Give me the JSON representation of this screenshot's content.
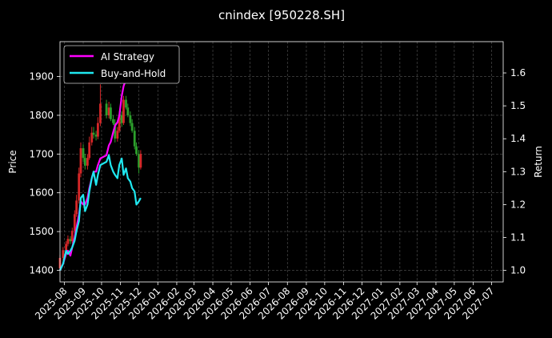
{
  "chart_data": {
    "type": "line",
    "title": "cnindex [950228.SH]",
    "xlabel": "",
    "ylabel": "Price",
    "y2label": "Return",
    "ylim": [
      1370,
      1990
    ],
    "y2lim": [
      0.965,
      1.695
    ],
    "y_ticks": [
      1400,
      1500,
      1600,
      1700,
      1800,
      1900
    ],
    "y2_ticks": [
      1.0,
      1.1,
      1.2,
      1.3,
      1.4,
      1.5,
      1.6
    ],
    "x_ticks": [
      "2025-08",
      "2025-09",
      "2025-10",
      "2025-11",
      "2025-12",
      "2026-01",
      "2026-02",
      "2026-03",
      "2026-04",
      "2026-05",
      "2026-06",
      "2026-07",
      "2026-08",
      "2026-09",
      "2026-10",
      "2026-11",
      "2026-12",
      "2027-01",
      "2027-02",
      "2027-03",
      "2027-04",
      "2027-05",
      "2027-06",
      "2027-07"
    ],
    "grid": true,
    "legend": "top-left",
    "background": "#000000",
    "candles": {
      "up_color": "#d62728",
      "down_color": "#2ca02c",
      "dates": [
        "2025-07-25",
        "2025-07-30",
        "2025-08-04",
        "2025-08-07",
        "2025-08-11",
        "2025-08-14",
        "2025-08-18",
        "2025-08-21",
        "2025-08-25",
        "2025-08-28",
        "2025-09-01",
        "2025-09-04",
        "2025-09-08",
        "2025-09-11",
        "2025-09-15",
        "2025-09-18",
        "2025-09-22",
        "2025-09-25",
        "2025-09-29",
        "2025-10-09",
        "2025-10-13",
        "2025-10-16",
        "2025-10-20",
        "2025-10-23",
        "2025-10-27",
        "2025-10-30",
        "2025-11-03",
        "2025-11-06",
        "2025-11-10",
        "2025-11-13",
        "2025-11-17",
        "2025-11-20",
        "2025-11-24",
        "2025-11-27",
        "2025-12-01",
        "2025-12-04"
      ],
      "open": [
        1405,
        1432,
        1452,
        1468,
        1481,
        1475,
        1502,
        1545,
        1580,
        1650,
        1715,
        1690,
        1670,
        1690,
        1730,
        1755,
        1750,
        1745,
        1780,
        1830,
        1800,
        1820,
        1790,
        1780,
        1740,
        1760,
        1800,
        1780,
        1840,
        1820,
        1800,
        1780,
        1760,
        1720,
        1700,
        1665
      ],
      "close": [
        1432,
        1452,
        1468,
        1481,
        1475,
        1502,
        1545,
        1580,
        1650,
        1715,
        1690,
        1670,
        1690,
        1730,
        1755,
        1750,
        1745,
        1780,
        1830,
        1800,
        1820,
        1790,
        1780,
        1740,
        1760,
        1800,
        1780,
        1840,
        1820,
        1800,
        1780,
        1760,
        1720,
        1700,
        1665,
        1700
      ],
      "high": [
        1440,
        1460,
        1475,
        1490,
        1488,
        1510,
        1555,
        1595,
        1665,
        1730,
        1725,
        1700,
        1700,
        1745,
        1770,
        1770,
        1760,
        1795,
        1880,
        1840,
        1835,
        1830,
        1800,
        1790,
        1770,
        1810,
        1810,
        1850,
        1850,
        1830,
        1810,
        1790,
        1770,
        1730,
        1710,
        1710
      ],
      "low": [
        1400,
        1425,
        1445,
        1462,
        1468,
        1470,
        1495,
        1538,
        1572,
        1640,
        1680,
        1660,
        1660,
        1685,
        1722,
        1740,
        1735,
        1738,
        1772,
        1792,
        1792,
        1785,
        1775,
        1730,
        1732,
        1755,
        1770,
        1775,
        1815,
        1795,
        1772,
        1755,
        1712,
        1695,
        1650,
        1660
      ]
    },
    "series": [
      {
        "name": "AI Strategy",
        "color": "#ff00ff",
        "axis": "right",
        "x": [
          "2025-07-25",
          "2025-07-30",
          "2025-08-04",
          "2025-08-07",
          "2025-08-11",
          "2025-08-14",
          "2025-08-18",
          "2025-08-21",
          "2025-08-25",
          "2025-08-28",
          "2025-09-01",
          "2025-09-04",
          "2025-09-08",
          "2025-09-11",
          "2025-09-15",
          "2025-09-18",
          "2025-09-22",
          "2025-09-25",
          "2025-09-29",
          "2025-10-09",
          "2025-10-13",
          "2025-10-16",
          "2025-10-20",
          "2025-10-23",
          "2025-10-27",
          "2025-10-30",
          "2025-11-03",
          "2025-11-06",
          "2025-11-10",
          "2025-11-13"
        ],
        "values": [
          1.0,
          1.02,
          1.05,
          1.06,
          1.045,
          1.07,
          1.1,
          1.13,
          1.17,
          1.21,
          1.2,
          1.2,
          1.22,
          1.25,
          1.28,
          1.3,
          1.3,
          1.32,
          1.34,
          1.35,
          1.38,
          1.39,
          1.42,
          1.44,
          1.45,
          1.47,
          1.53,
          1.56,
          1.58,
          1.6
        ]
      },
      {
        "name": "Buy-and-Hold",
        "color": "#1fe8f0",
        "axis": "right",
        "x": [
          "2025-07-25",
          "2025-07-30",
          "2025-08-04",
          "2025-08-07",
          "2025-08-11",
          "2025-08-14",
          "2025-08-18",
          "2025-08-21",
          "2025-08-25",
          "2025-08-28",
          "2025-09-01",
          "2025-09-04",
          "2025-09-08",
          "2025-09-11",
          "2025-09-15",
          "2025-09-18",
          "2025-09-22",
          "2025-09-25",
          "2025-09-29",
          "2025-10-09",
          "2025-10-13",
          "2025-10-16",
          "2025-10-20",
          "2025-10-23",
          "2025-10-27",
          "2025-10-30",
          "2025-11-03",
          "2025-11-06",
          "2025-11-10",
          "2025-11-13",
          "2025-11-17",
          "2025-11-20",
          "2025-11-24",
          "2025-11-27",
          "2025-12-01",
          "2025-12-04"
        ],
        "values": [
          1.0,
          1.02,
          1.06,
          1.05,
          1.06,
          1.07,
          1.09,
          1.12,
          1.15,
          1.22,
          1.23,
          1.18,
          1.2,
          1.24,
          1.28,
          1.3,
          1.26,
          1.29,
          1.32,
          1.33,
          1.35,
          1.32,
          1.3,
          1.29,
          1.28,
          1.32,
          1.34,
          1.29,
          1.31,
          1.28,
          1.27,
          1.25,
          1.24,
          1.2,
          1.21,
          1.22
        ]
      }
    ]
  }
}
